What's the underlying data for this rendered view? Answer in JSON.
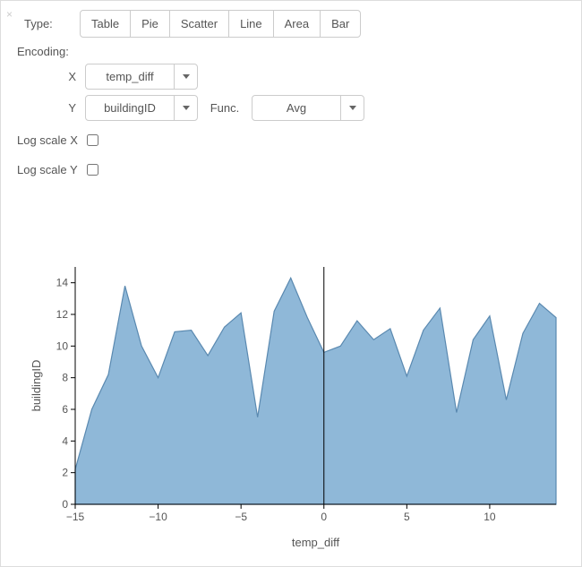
{
  "labels": {
    "type": "Type:",
    "encoding": "Encoding:",
    "x": "X",
    "y": "Y",
    "func": "Func.",
    "logx": "Log scale X",
    "logy": "Log scale Y"
  },
  "type_buttons": [
    "Table",
    "Pie",
    "Scatter",
    "Line",
    "Area",
    "Bar"
  ],
  "encoding": {
    "x_field": "temp_diff",
    "y_field": "buildingID",
    "func": "Avg",
    "log_x": false,
    "log_y": false
  },
  "chart": {
    "type": "area",
    "x_label": "temp_diff",
    "y_label": "buildingID",
    "xlim": [
      -15,
      14
    ],
    "ylim": [
      0,
      15
    ],
    "x_ticks": [
      -15,
      -10,
      -5,
      0,
      5,
      10
    ],
    "y_ticks": [
      0,
      2,
      4,
      6,
      8,
      10,
      12,
      14
    ],
    "fill_color": "#8fb8d8",
    "stroke_color": "#5a89b0",
    "stroke_width": 1.2,
    "grid_color": "#000000",
    "axis_color": "#000000",
    "background_color": "#ffffff",
    "tick_fontsize": 12,
    "label_fontsize": 13,
    "data": [
      {
        "x": -15,
        "y": 2.2
      },
      {
        "x": -14,
        "y": 6.0
      },
      {
        "x": -13,
        "y": 8.2
      },
      {
        "x": -12,
        "y": 13.8
      },
      {
        "x": -11,
        "y": 10.0
      },
      {
        "x": -10,
        "y": 8.0
      },
      {
        "x": -9,
        "y": 10.9
      },
      {
        "x": -8,
        "y": 11.0
      },
      {
        "x": -7,
        "y": 9.4
      },
      {
        "x": -6,
        "y": 11.2
      },
      {
        "x": -5,
        "y": 12.1
      },
      {
        "x": -4,
        "y": 5.5
      },
      {
        "x": -3,
        "y": 12.2
      },
      {
        "x": -2,
        "y": 14.3
      },
      {
        "x": -1,
        "y": 11.8
      },
      {
        "x": 0,
        "y": 9.6
      },
      {
        "x": 1,
        "y": 10.0
      },
      {
        "x": 2,
        "y": 11.6
      },
      {
        "x": 3,
        "y": 10.4
      },
      {
        "x": 4,
        "y": 11.1
      },
      {
        "x": 5,
        "y": 8.1
      },
      {
        "x": 6,
        "y": 11.0
      },
      {
        "x": 7,
        "y": 12.4
      },
      {
        "x": 8,
        "y": 5.8
      },
      {
        "x": 9,
        "y": 10.4
      },
      {
        "x": 10,
        "y": 11.9
      },
      {
        "x": 11,
        "y": 6.6
      },
      {
        "x": 12,
        "y": 10.8
      },
      {
        "x": 13,
        "y": 12.7
      },
      {
        "x": 14,
        "y": 11.8
      }
    ]
  }
}
